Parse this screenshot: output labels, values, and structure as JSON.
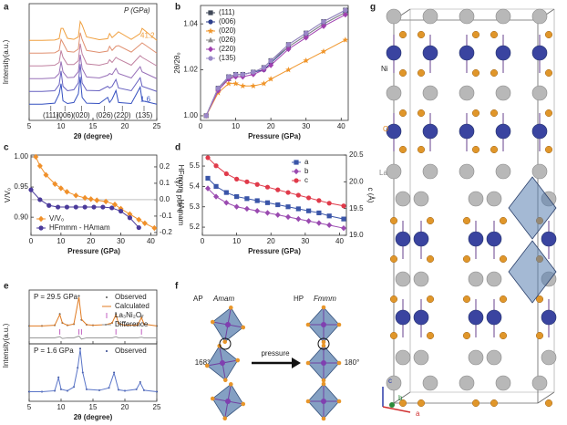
{
  "panel_labels": [
    "a",
    "b",
    "c",
    "d",
    "e",
    "f",
    "g"
  ],
  "chart_data": [
    {
      "type": "waterfall",
      "xlabel": "2θ (degree)",
      "ylabel": "Intensity(a.u.)",
      "pressure_label": "P (GPa)",
      "xlim": [
        5,
        25
      ],
      "xticks": [
        5,
        10,
        15,
        20,
        25
      ],
      "ylim": [
        0,
        12
      ],
      "x": [
        5,
        7,
        9,
        9.7,
        10,
        10.3,
        11,
        12,
        12.7,
        13,
        13.3,
        14,
        16,
        17.3,
        17.6,
        18,
        18.6,
        19,
        21,
        22.4,
        22.7,
        25
      ],
      "series": [
        {
          "name": "1.6",
          "color": "#3550c0",
          "values": [
            1,
            1,
            1.3,
            4,
            7,
            2,
            1.2,
            1.5,
            4,
            9,
            3,
            1.3,
            1.2,
            3,
            1.5,
            2.5,
            5,
            1.5,
            1.2,
            6,
            2,
            1
          ]
        },
        {
          "color": "#6660c0",
          "values": [
            1,
            1,
            1.2,
            3,
            7,
            2.5,
            1.2,
            1.5,
            3.5,
            9,
            3.5,
            1.3,
            1.2,
            2.5,
            2,
            2.5,
            4.5,
            2,
            1.2,
            5,
            2.5,
            1
          ]
        },
        {
          "color": "#9870b8",
          "values": [
            1,
            1,
            1.2,
            2.5,
            6,
            3,
            1.3,
            1.4,
            3,
            8,
            4,
            1.5,
            1.2,
            2,
            2.5,
            2.2,
            4,
            2.5,
            1.2,
            4.5,
            3,
            1
          ]
        },
        {
          "color": "#c080a0",
          "values": [
            1,
            1,
            1.2,
            2,
            5.5,
            3.5,
            1.4,
            1.4,
            2.5,
            7.5,
            4.5,
            1.6,
            1.2,
            1.8,
            2.8,
            2,
            3.5,
            3,
            1.2,
            4,
            3.5,
            1
          ]
        },
        {
          "color": "#e09070",
          "values": [
            1,
            1,
            1.1,
            1.8,
            5,
            4,
            1.5,
            1.3,
            2.2,
            7,
            5,
            1.8,
            1.2,
            1.6,
            3,
            1.8,
            3,
            3.2,
            1.3,
            3.5,
            4,
            1
          ]
        },
        {
          "name": "41.2",
          "color": "#f0a040",
          "values": [
            1,
            1,
            1.1,
            1.5,
            4.5,
            4.5,
            1.6,
            1.3,
            2,
            6.5,
            5.5,
            2,
            1.2,
            1.5,
            3,
            1.8,
            2.8,
            3.5,
            1.3,
            3,
            4.5,
            1
          ]
        }
      ],
      "peak_labels": [
        "(111)",
        "(006)",
        "(020)",
        "(026)",
        "(220)",
        "(135)"
      ]
    },
    {
      "type": "line",
      "xlabel": "Pressure (GPa)",
      "ylabel": "2θ/2θ₀",
      "legend": "upper left",
      "xlim": [
        0,
        42
      ],
      "xticks": [
        0,
        10,
        20,
        30,
        40
      ],
      "ylim": [
        0.998,
        1.048
      ],
      "yticks": [
        {
          "value": 1,
          "label": "1.00"
        },
        1.02,
        1.04
      ],
      "x": [
        1.6,
        5,
        8,
        10,
        12,
        15,
        18,
        20,
        25,
        30,
        35,
        41.2
      ],
      "series": [
        {
          "name": "(111)",
          "color": "#404858",
          "marker": "square",
          "values": [
            1.0,
            1.012,
            1.017,
            1.018,
            1.018,
            1.019,
            1.021,
            1.024,
            1.031,
            1.036,
            1.041,
            1.046
          ]
        },
        {
          "name": "(006)",
          "color": "#2c3e8b",
          "marker": "circle",
          "values": [
            1.0,
            1.012,
            1.017,
            1.018,
            1.018,
            1.019,
            1.02,
            1.023,
            1.03,
            1.035,
            1.04,
            1.045
          ]
        },
        {
          "name": "(020)",
          "color": "#f0952a",
          "marker": "star",
          "values": [
            1.0,
            1.01,
            1.014,
            1.014,
            1.013,
            1.013,
            1.014,
            1.016,
            1.02,
            1.024,
            1.028,
            1.033
          ]
        },
        {
          "name": "(026)",
          "color": "#8a8a8a",
          "marker": "triangle",
          "values": [
            1.0,
            1.012,
            1.016,
            1.018,
            1.018,
            1.019,
            1.021,
            1.024,
            1.03,
            1.035,
            1.04,
            1.045
          ]
        },
        {
          "name": "(220)",
          "color": "#a040b0",
          "marker": "diamond",
          "values": [
            1.0,
            1.011,
            1.016,
            1.017,
            1.017,
            1.018,
            1.02,
            1.022,
            1.029,
            1.034,
            1.039,
            1.044
          ]
        },
        {
          "name": "(135)",
          "color": "#9a88c8",
          "marker": "circle",
          "values": [
            1.0,
            1.012,
            1.017,
            1.018,
            1.018,
            1.019,
            1.021,
            1.024,
            1.031,
            1.036,
            1.041,
            1.046
          ]
        }
      ]
    },
    {
      "type": "line",
      "xlabel": "Pressure (GPa)",
      "ylabel": "V/V₀",
      "y2label": "HFmmm - HAmam",
      "legend": "lower left",
      "y2_zero_line": true,
      "xlim": [
        0,
        42
      ],
      "xticks": [
        0,
        10,
        20,
        30,
        40
      ],
      "ylim": [
        0.87,
        1.003
      ],
      "yticks": [
        {
          "value": 0.9,
          "label": "0.90"
        },
        0.95,
        {
          "value": 1,
          "label": "1.00"
        }
      ],
      "y2lim": [
        -0.217,
        0.272
      ],
      "y2ticks": [
        -0.2,
        -0.1,
        {
          "value": 0,
          "label": "0.0"
        },
        0.1,
        0.2
      ],
      "series": [
        {
          "name": "V/V₀",
          "color": "#f0902a",
          "marker": "diamond",
          "x": [
            1.6,
            3,
            5,
            8,
            10,
            12,
            15,
            18,
            20,
            22,
            25,
            28,
            30,
            33,
            36,
            38,
            41.2
          ],
          "values": [
            1.0,
            0.985,
            0.97,
            0.955,
            0.948,
            0.942,
            0.936,
            0.932,
            0.93,
            0.928,
            0.926,
            0.921,
            0.914,
            0.905,
            0.896,
            0.89,
            0.882
          ]
        },
        {
          "name": "HFmmm - HAmam",
          "color": "#4a3a9a",
          "marker": "circle",
          "axis": "y2",
          "x": [
            0,
            3,
            6,
            9,
            12,
            15,
            18,
            21,
            24,
            27,
            30,
            33,
            36
          ],
          "values": [
            0.06,
            0.0,
            -0.035,
            -0.045,
            -0.045,
            -0.045,
            -0.045,
            -0.045,
            -0.045,
            -0.05,
            -0.07,
            -0.11,
            -0.17
          ]
        }
      ]
    },
    {
      "type": "line",
      "xlabel": "Pressure (GPa)",
      "ylabel": "a and b (Å)",
      "y2label": "c (Å)",
      "legend": "upper right",
      "xlim": [
        0,
        42
      ],
      "xticks": [
        0,
        10,
        20,
        30,
        40
      ],
      "ylim": [
        5.16,
        5.554
      ],
      "yticks": [
        5.2,
        5.3,
        5.4,
        5.5
      ],
      "y2lim": [
        19.0,
        20.5
      ],
      "y2ticks": [
        {
          "value": 19,
          "label": "19.0"
        },
        19.5,
        {
          "value": 20,
          "label": "20.0"
        },
        20.5
      ],
      "x": [
        1.6,
        4,
        7,
        10,
        13,
        16,
        19,
        22,
        25,
        28,
        31,
        34,
        37,
        41.2
      ],
      "series": [
        {
          "name": "a",
          "color": "#3a55a8",
          "marker": "square",
          "values": [
            5.44,
            5.4,
            5.37,
            5.35,
            5.34,
            5.33,
            5.32,
            5.31,
            5.3,
            5.29,
            5.28,
            5.27,
            5.255,
            5.24
          ]
        },
        {
          "name": "b",
          "color": "#9a4ab0",
          "marker": "diamond",
          "values": [
            5.39,
            5.35,
            5.32,
            5.3,
            5.29,
            5.28,
            5.27,
            5.26,
            5.25,
            5.24,
            5.23,
            5.22,
            5.21,
            5.195
          ]
        },
        {
          "name": "c",
          "color": "#e03a4a",
          "marker": "circle",
          "axis": "y2",
          "values": [
            20.45,
            20.3,
            20.15,
            20.05,
            20.0,
            19.95,
            19.9,
            19.85,
            19.8,
            19.75,
            19.7,
            19.65,
            19.6,
            19.55
          ]
        }
      ]
    },
    {
      "type": "line",
      "annotation": "P = 29.5 GPa",
      "legend": "upper right",
      "xtick_labels": false,
      "xlim": [
        5,
        25
      ],
      "xticks": [
        5,
        10,
        15,
        20,
        25
      ],
      "ylim": [
        -2,
        7
      ],
      "x": [
        5,
        7,
        9,
        9.8,
        10.2,
        11,
        12,
        12.8,
        13.2,
        14,
        15,
        17,
        18,
        18.6,
        19,
        20,
        22,
        22.6,
        23,
        25
      ],
      "series": [
        {
          "name": "Observed",
          "color": "#555555",
          "marker": "dot",
          "line": "none",
          "values": [
            1,
            1,
            1.1,
            3,
            1.5,
            1.1,
            1.3,
            6,
            2,
            1.2,
            1.1,
            1.2,
            1.5,
            3,
            1.4,
            1.1,
            1.1,
            2.5,
            1.3,
            1
          ]
        },
        {
          "name": "Calculated",
          "color": "#e07a20",
          "marker": "none",
          "values": [
            1,
            1,
            1.1,
            2.9,
            1.5,
            1.1,
            1.3,
            5.8,
            2.1,
            1.2,
            1.1,
            1.2,
            1.5,
            2.9,
            1.4,
            1.1,
            1.1,
            2.4,
            1.3,
            1
          ]
        },
        {
          "name": "La₃Ni₂O₇",
          "color": "#c060c0",
          "marker": "vline",
          "line": "none",
          "x": [
            9.8,
            12.8,
            13.2,
            18.6,
            22.6
          ],
          "values": [
            0,
            0,
            0,
            0,
            0
          ]
        },
        {
          "name": "Difference",
          "color": "#999999",
          "marker": "none",
          "values": [
            -1,
            -1,
            -1,
            -0.8,
            -1.1,
            -1,
            -1,
            -0.7,
            -1.2,
            -1,
            -1,
            -1,
            -1,
            -0.8,
            -1,
            -1,
            -1,
            -0.9,
            -1,
            -1
          ]
        }
      ]
    },
    {
      "type": "line",
      "annotation": "P = 1.6 GPa",
      "legend": "upper right",
      "xlabel": "2θ (degree)",
      "ylabel": "Intensity(a.u.)",
      "xlim": [
        5,
        25
      ],
      "xticks": [
        5,
        10,
        15,
        20,
        25
      ],
      "ylim": [
        -1,
        11
      ],
      "x": [
        5,
        7,
        9,
        9.6,
        10,
        11,
        12,
        12.6,
        13,
        13.4,
        14,
        16,
        17.5,
        18.3,
        19,
        20,
        21.8,
        22.4,
        23,
        25
      ],
      "series": [
        {
          "name": "Observed",
          "color": "#2a3f8a",
          "marker": "dot",
          "line": "none",
          "values": [
            1,
            1,
            1.2,
            4,
            1.5,
            1.2,
            2,
            6,
            10,
            5,
            1.5,
            1.3,
            1.8,
            5,
            1.4,
            1.2,
            1.5,
            3,
            1.3,
            1
          ]
        },
        {
          "color": "#5a75c8",
          "marker": "none",
          "values": [
            1,
            1,
            1.2,
            3.9,
            1.5,
            1.2,
            2,
            5.9,
            9.8,
            5,
            1.5,
            1.3,
            1.8,
            4.9,
            1.4,
            1.2,
            1.5,
            2.9,
            1.3,
            1
          ]
        }
      ]
    }
  ],
  "diagram_f": {
    "left_phase": "AP",
    "left_group": "Amam",
    "right_phase": "HP",
    "right_group": "Fmmm",
    "arrow": "pressure",
    "left_angle": "168°",
    "right_angle": "180°"
  },
  "diagram_g": {
    "atoms": [
      "Ni",
      "O",
      "La"
    ],
    "axes": [
      "c",
      "b",
      "a"
    ]
  }
}
